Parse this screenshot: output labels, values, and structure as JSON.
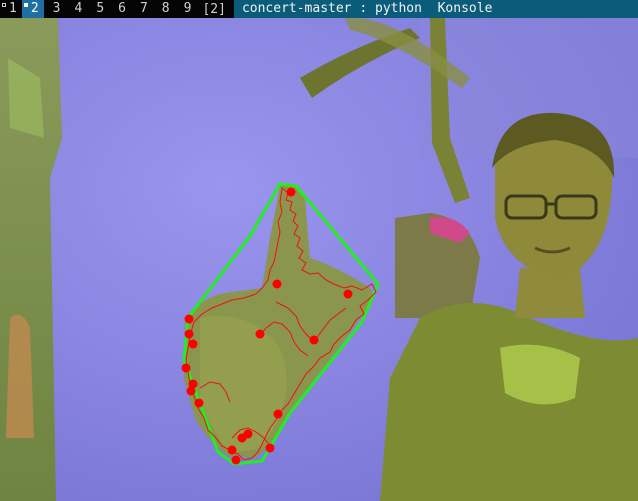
{
  "taskbar": {
    "workspaces": [
      {
        "label": "1",
        "active": false
      },
      {
        "label": "2",
        "active": true
      },
      {
        "label": "3",
        "active": false
      },
      {
        "label": "4",
        "active": false
      },
      {
        "label": "5",
        "active": false
      },
      {
        "label": "6",
        "active": false
      },
      {
        "label": "7",
        "active": false
      },
      {
        "label": "8",
        "active": false
      },
      {
        "label": "9",
        "active": false
      }
    ],
    "window_count": "[2]",
    "window_title": "concert-master : python  Konsole"
  },
  "colors": {
    "hull": "#22ee22",
    "contour": "#ee1111",
    "defect_points": "#ff0000",
    "active_workspace": "#1e6fa3",
    "title_bar": "#0a5c7a"
  }
}
